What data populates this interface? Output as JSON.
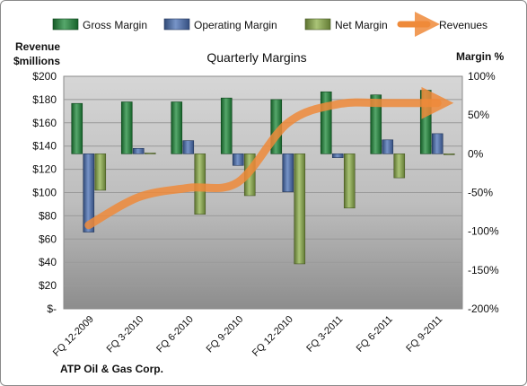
{
  "chart_data": {
    "type": "bar",
    "title": "Quarterly Margins",
    "company": "ATP Oil & Gas Corp.",
    "left_axis": {
      "label_line1": "Revenue",
      "label_line2": "$millions",
      "ticks": [
        "$-",
        "$20",
        "$40",
        "$60",
        "$80",
        "$100",
        "$120",
        "$140",
        "$160",
        "$180",
        "$200"
      ],
      "range": [
        0,
        200
      ]
    },
    "right_axis": {
      "label": "Margin %",
      "ticks": [
        "-200%",
        "-150%",
        "-100%",
        "-50%",
        "0%",
        "50%",
        "100%"
      ],
      "range": [
        -200,
        100
      ]
    },
    "categories": [
      "FQ 12-2009",
      "FQ 3-2010",
      "FQ 6-2010",
      "FQ 9-2010",
      "FQ 12-2010",
      "FQ 3-2011",
      "FQ 6-2011",
      "FQ 9-2011"
    ],
    "series": [
      {
        "name": "Gross Margin",
        "axis": "right",
        "color": "#1e8a3a",
        "values": [
          65,
          67,
          67,
          72,
          70,
          80,
          76,
          82
        ]
      },
      {
        "name": "Operating Margin",
        "axis": "right",
        "color": "#4a70b5",
        "values": [
          -101,
          7,
          17,
          -15,
          -49,
          -5,
          18,
          26
        ]
      },
      {
        "name": "Net Margin",
        "axis": "right",
        "color": "#8db04a",
        "values": [
          -47,
          1,
          -78,
          -54,
          -142,
          -70,
          -31,
          0
        ]
      },
      {
        "name": "Revenues",
        "axis": "left",
        "type": "line",
        "color": "#ee8a3a",
        "values": [
          72,
          96,
          104,
          109,
          160,
          176,
          177,
          177
        ]
      }
    ],
    "legend_position": "top",
    "grid": true
  }
}
